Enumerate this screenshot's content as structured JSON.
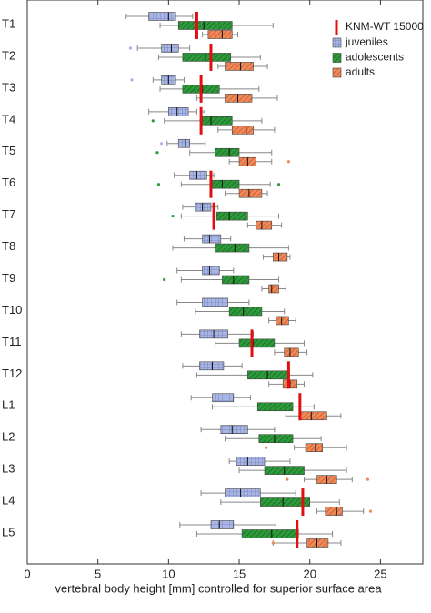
{
  "chart_data": {
    "type": "boxplot",
    "x_label": "vertebral body height [mm] controlled for superior surface area",
    "xlim": [
      0,
      28
    ],
    "xticks": [
      0,
      5,
      10,
      15,
      20,
      25
    ],
    "categories": [
      "T1",
      "T2",
      "T3",
      "T4",
      "T5",
      "T6",
      "T7",
      "T8",
      "T9",
      "T10",
      "T11",
      "T12",
      "L1",
      "L2",
      "L3",
      "L4",
      "L5"
    ],
    "reference": {
      "name": "KNM-WT 15000",
      "color": "#e01010",
      "values": [
        12.0,
        13.0,
        12.3,
        12.3,
        null,
        13.0,
        13.2,
        null,
        null,
        null,
        15.9,
        18.5,
        19.3,
        null,
        null,
        19.5,
        19.1
      ]
    },
    "series": [
      {
        "name": "juveniles",
        "color": "#a9b5e3",
        "pattern": "grid",
        "boxes": [
          [
            7.0,
            8.6,
            10.0,
            10.5,
            11.7
          ],
          [
            7.8,
            9.5,
            10.2,
            10.7,
            11.5
          ],
          [
            8.9,
            9.5,
            10.0,
            10.5,
            11.1
          ],
          [
            8.6,
            10.0,
            10.6,
            11.4,
            12.0
          ],
          [
            9.9,
            10.7,
            11.2,
            11.5,
            12.6
          ],
          [
            10.4,
            11.5,
            12.0,
            12.7,
            13.2
          ],
          [
            11.0,
            11.9,
            12.4,
            13.0,
            13.5
          ],
          [
            11.1,
            12.4,
            12.9,
            13.7,
            14.4
          ],
          [
            10.6,
            12.4,
            12.9,
            13.6,
            14.6
          ],
          [
            10.6,
            12.4,
            13.3,
            14.2,
            15.7
          ],
          [
            10.9,
            12.2,
            13.2,
            14.2,
            16.0
          ],
          [
            11.0,
            12.2,
            13.1,
            13.9,
            15.2
          ],
          [
            11.6,
            13.1,
            13.3,
            14.6,
            15.8
          ],
          [
            12.3,
            13.7,
            14.5,
            15.6,
            17.5
          ],
          [
            14.3,
            14.8,
            15.6,
            16.8,
            18.6
          ],
          [
            12.3,
            14.0,
            15.1,
            16.5,
            19.0
          ],
          [
            10.8,
            13.0,
            13.6,
            14.6,
            17.6
          ]
        ],
        "outliers": [
          [],
          [
            7.3
          ],
          [
            7.4
          ],
          [
            12.5
          ],
          [
            9.5
          ],
          [],
          [],
          [],
          [],
          [],
          [],
          [],
          [],
          [],
          [],
          [],
          []
        ]
      },
      {
        "name": "adolescents",
        "color": "#2e9a3c",
        "pattern": "hatch",
        "boxes": [
          [
            9.4,
            10.7,
            12.5,
            14.5,
            17.4
          ],
          [
            9.3,
            11.0,
            12.6,
            14.4,
            16.5
          ],
          [
            9.4,
            11.0,
            12.4,
            13.6,
            16.4
          ],
          [
            9.7,
            12.4,
            13.0,
            14.5,
            16.6
          ],
          [
            11.5,
            13.3,
            14.3,
            15.0,
            17.3
          ],
          [
            10.9,
            13.1,
            13.8,
            15.0,
            17.2
          ],
          [
            10.9,
            13.4,
            14.3,
            15.6,
            17.8
          ],
          [
            10.3,
            13.3,
            14.7,
            15.7,
            18.5
          ],
          [
            10.9,
            13.8,
            14.6,
            15.7,
            17.8
          ],
          [
            11.9,
            14.3,
            15.3,
            16.6,
            18.2
          ],
          [
            13.3,
            15.0,
            16.0,
            17.5,
            19.6
          ],
          [
            12.0,
            15.6,
            17.0,
            18.5,
            20.2
          ],
          [
            13.1,
            16.3,
            17.6,
            18.8,
            20.3
          ],
          [
            14.0,
            16.4,
            17.5,
            18.8,
            20.8
          ],
          [
            15.0,
            16.8,
            18.2,
            19.6,
            22.6
          ],
          [
            13.7,
            16.5,
            18.1,
            20.0,
            22.1
          ],
          [
            12.0,
            15.2,
            17.3,
            19.2,
            21.6
          ]
        ],
        "outliers": [
          [],
          [],
          [],
          [
            8.9
          ],
          [
            9.2
          ],
          [
            9.3,
            17.8
          ],
          [
            10.3
          ],
          [],
          [
            9.7
          ],
          [],
          [],
          [
            16.6
          ],
          [
            18.0
          ],
          [],
          [],
          [],
          [
            17.6
          ]
        ]
      },
      {
        "name": "adults",
        "color": "#f0895a",
        "pattern": "hatch",
        "boxes": [
          [
            12.4,
            12.8,
            13.8,
            14.5,
            14.9
          ],
          [
            13.5,
            14.0,
            15.1,
            16.0,
            17.0
          ],
          [
            12.0,
            14.0,
            14.9,
            15.9,
            17.7
          ],
          [
            13.5,
            14.5,
            15.5,
            16.0,
            17.5
          ],
          [
            14.3,
            15.0,
            15.6,
            16.2,
            17.3
          ],
          [
            14.0,
            15.0,
            15.7,
            16.6,
            17.0
          ],
          [
            15.6,
            16.2,
            16.6,
            17.3,
            18.0
          ],
          [
            16.7,
            17.4,
            17.8,
            18.4,
            18.6
          ],
          [
            16.6,
            17.1,
            17.3,
            17.8,
            18.3
          ],
          [
            17.1,
            17.6,
            18.0,
            18.5,
            19.0
          ],
          [
            17.5,
            18.2,
            18.6,
            19.2,
            19.8
          ],
          [
            17.1,
            18.1,
            18.6,
            19.1,
            19.6
          ],
          [
            18.3,
            19.3,
            20.1,
            21.2,
            22.2
          ],
          [
            18.9,
            19.7,
            20.4,
            20.9,
            22.6
          ],
          [
            19.6,
            20.5,
            21.2,
            21.9,
            23.0
          ],
          [
            20.5,
            21.1,
            21.9,
            22.3,
            23.8
          ],
          [
            17.4,
            19.8,
            20.5,
            21.3,
            22.2
          ]
        ],
        "outliers": [
          [],
          [],
          [],
          [],
          [
            18.5
          ],
          [],
          [],
          [],
          [],
          [],
          [],
          [],
          [],
          [
            16.9
          ],
          [
            18.4,
            24.1
          ],
          [
            24.3
          ],
          [
            17.4
          ]
        ]
      }
    ]
  }
}
